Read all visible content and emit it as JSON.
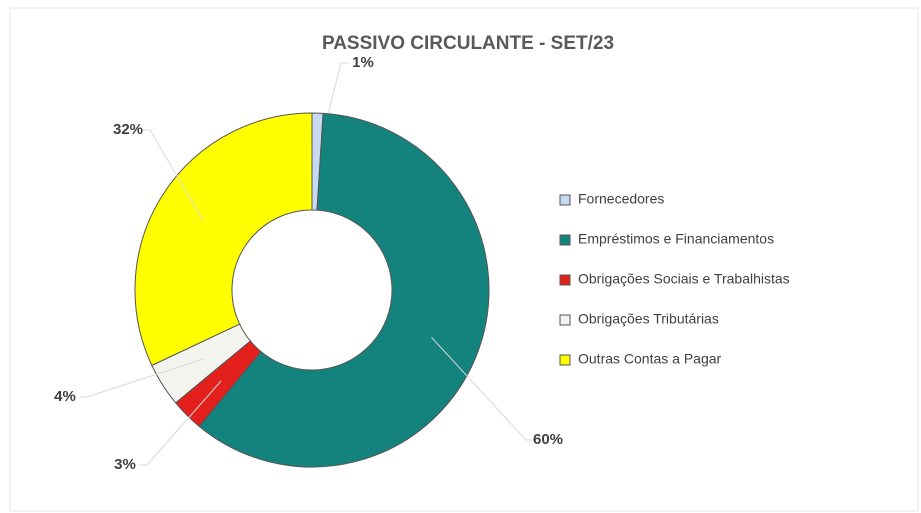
{
  "chart_data": {
    "type": "donut",
    "title": "PASSIVO  CIRCULANTE - SET/23",
    "categories": [
      "Fornecedores",
      "Empréstimos e Financiamentos",
      "Obrigações Sociais e Trabalhistas",
      "Obrigações Tributárias",
      "Outras Contas a Pagar"
    ],
    "values": [
      1,
      60,
      3,
      4,
      32
    ],
    "value_labels": [
      "1%",
      "60%",
      "3%",
      "4%",
      "32%"
    ],
    "colors": [
      "#c6d9f0",
      "#14827d",
      "#e3201c",
      "#f4f4ee",
      "#ffff00"
    ],
    "legend": "right"
  }
}
